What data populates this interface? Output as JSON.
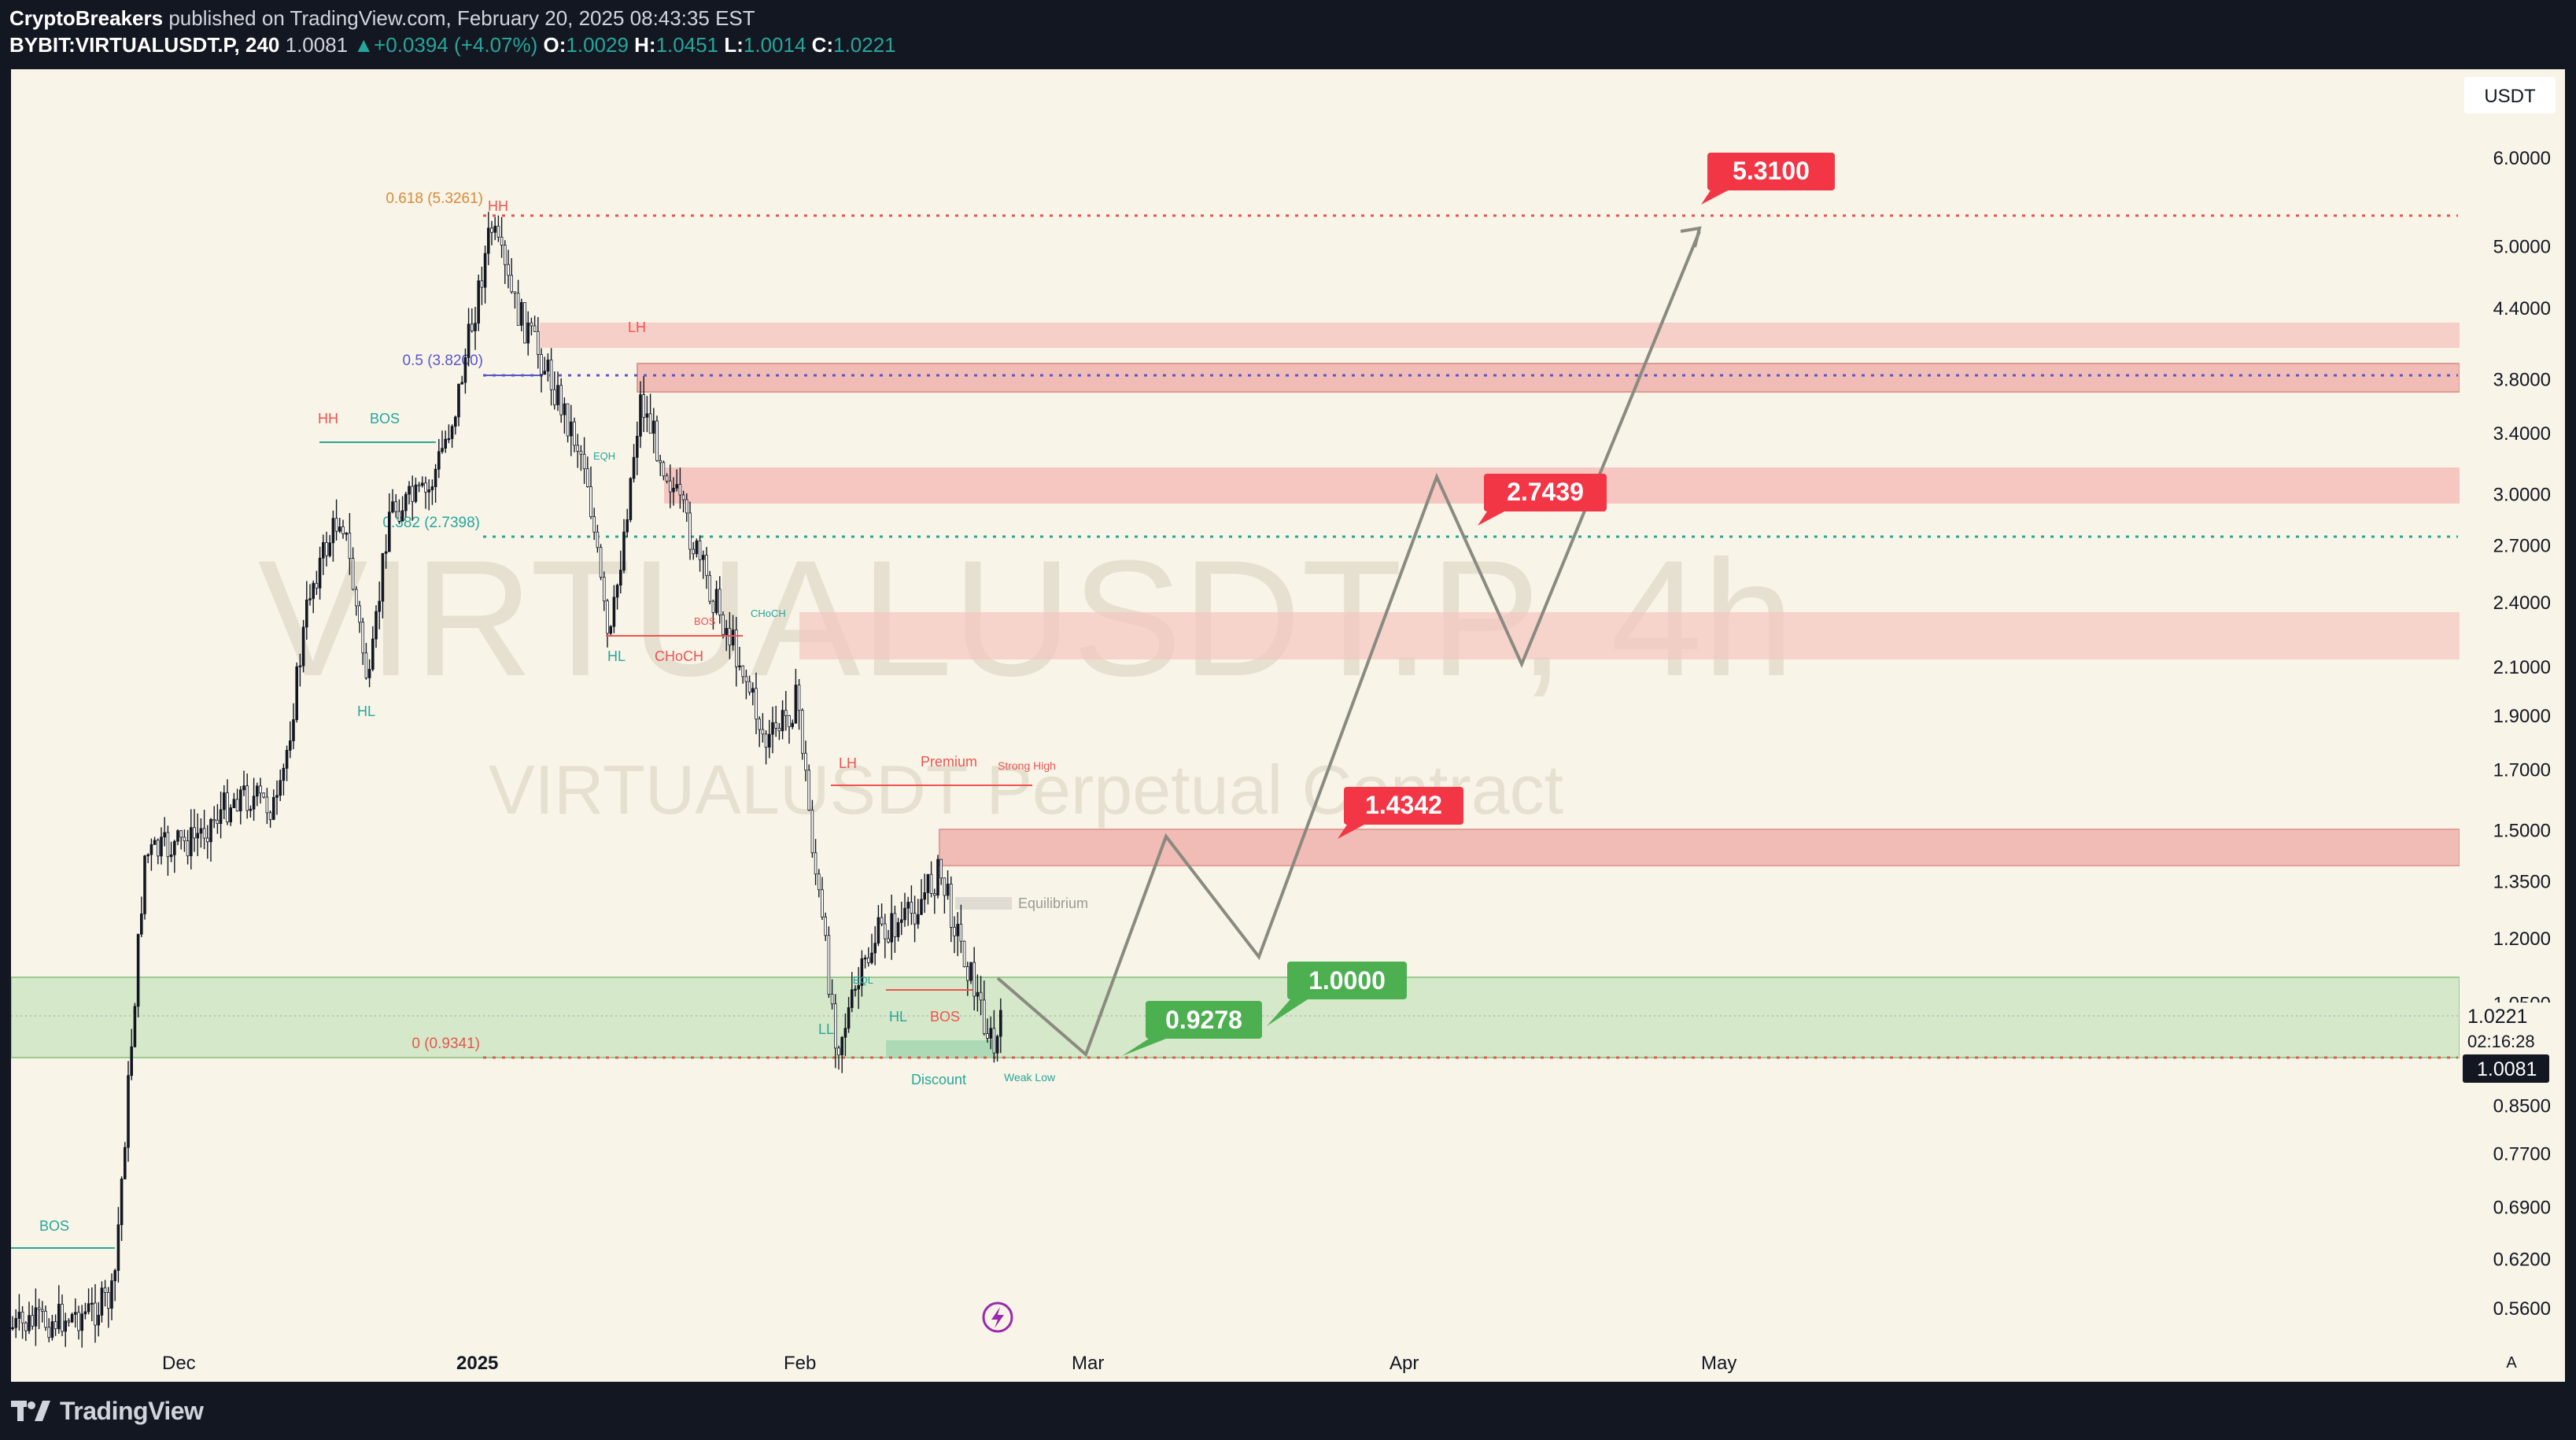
{
  "header": {
    "author": "CryptoBreakers",
    "published_text": "published on TradingView.com, February 20, 2025 08:43:35 EST",
    "symbol": "BYBIT:VIRTUALUSDT.P, 240",
    "last": "1.0081",
    "change": "+0.0394 (+4.07%)",
    "o_label": "O:",
    "o_value": "1.0029",
    "h_label": "H:",
    "h_value": "1.0451",
    "l_label": "L:",
    "l_value": "1.0014",
    "c_label": "C:",
    "c_value": "1.0221"
  },
  "watermark": {
    "title": "VIRTUALUSDT.P, 4h",
    "subtitle": "VIRTUALUSDT Perpetual Contract"
  },
  "price_axis": {
    "currency": "USDT",
    "ticks": [
      "6.0000",
      "5.0000",
      "4.4000",
      "3.8000",
      "3.4000",
      "3.0000",
      "2.7000",
      "2.4000",
      "2.1000",
      "1.9000",
      "1.7000",
      "1.5000",
      "1.3500",
      "1.2000",
      "1.0500",
      "0.8500",
      "0.7700",
      "0.6900",
      "0.6200",
      "0.5600"
    ],
    "last_price": "1.0221",
    "countdown": "02:16:28",
    "current_price": "1.0081",
    "auto_label": "A"
  },
  "time_axis": {
    "ticks": [
      "Dec",
      "2025",
      "Feb",
      "Mar",
      "Apr",
      "May"
    ]
  },
  "targets": {
    "t1": "5.3100",
    "t2": "2.7439",
    "t3": "1.4342",
    "t4": "1.0000",
    "t5": "0.9278"
  },
  "fib_labels": {
    "f618": "0.618 (5.3261)",
    "f5": "0.5 (3.8200)",
    "f382": "0.382 (2.7398)",
    "f0": "0 (0.9341)"
  },
  "structure_labels": {
    "hh_top": "HH",
    "lh_top": "LH",
    "hh_left": "HH",
    "bos_left": "BOS",
    "hl_left": "HL",
    "hl_mid": "HL",
    "choch_mid": "CHoCH",
    "lh_mid": "LH",
    "premium": "Premium",
    "strong_high": "Strong High",
    "equilibrium": "Equilibrium",
    "ll": "LL",
    "hl_low": "HL",
    "bos_low": "BOS",
    "discount": "Discount",
    "weak_low": "Weak Low",
    "bos_bottom": "BOS",
    "eql": "EQL",
    "choch_small": "CHoCH",
    "bos_small": "BOS",
    "eqh": "EQH"
  },
  "footer": {
    "brand": "TradingView"
  },
  "colors": {
    "background": "#f8f4e8",
    "bull": "#26a69a",
    "bear": "#ef5350",
    "label_red": "#f23645",
    "label_green": "#4caf50"
  }
}
